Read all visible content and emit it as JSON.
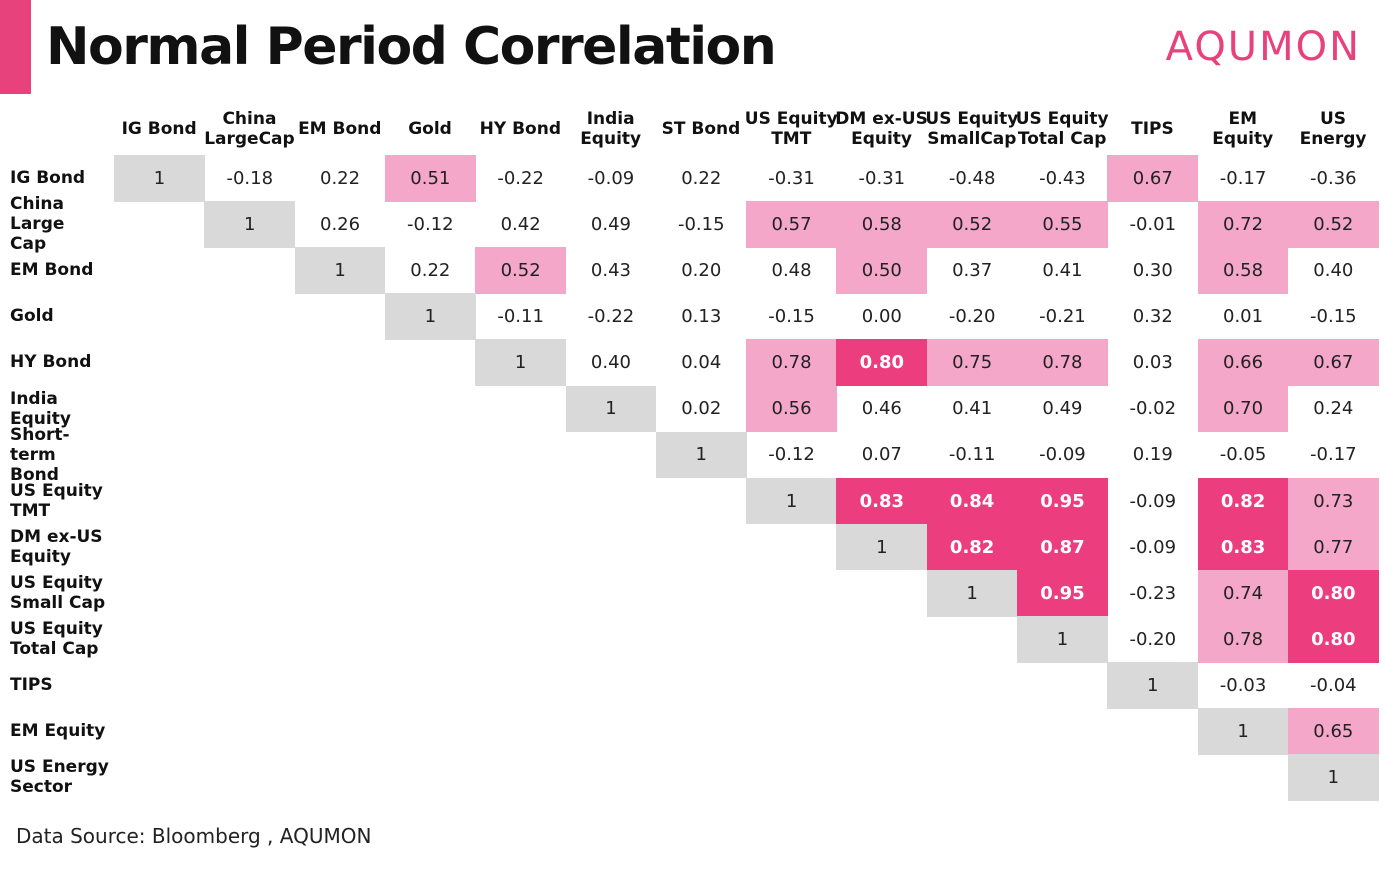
{
  "header": {
    "title": "Normal Period Correlation",
    "logo": "AQUMON"
  },
  "source": "Data Source: Bloomberg , AQUMON",
  "colors": {
    "diagonal": "#d9d9d9",
    "medium": "#f4a7c8",
    "high": "#ec3e7e",
    "accent": "#e8427c"
  },
  "legend_thresholds": {
    "medium_min": 0.5,
    "high_min": 0.8
  },
  "chart_data": {
    "type": "heatmap",
    "title": "Normal Period Correlation",
    "columns": [
      "IG Bond",
      "China\nLargeCap",
      "EM Bond",
      "Gold",
      "HY Bond",
      "India\nEquity",
      "ST Bond",
      "US Equity\nTMT",
      "DM ex-US\nEquity",
      "US Equity\nSmallCap",
      "US Equity\nTotal Cap",
      "TIPS",
      "EM\nEquity",
      "US\nEnergy"
    ],
    "rows": [
      "IG Bond",
      "China Large\nCap",
      "EM Bond",
      "Gold",
      "HY Bond",
      "India\nEquity",
      "Short-term\nBond",
      "US Equity\nTMT",
      "DM ex-US\nEquity",
      "US Equity\nSmall Cap",
      "US Equity\nTotal Cap",
      "TIPS",
      "EM Equity",
      "US Energy\nSector"
    ],
    "values": [
      [
        "1",
        "-0.18",
        "0.22",
        "0.51",
        "-0.22",
        "-0.09",
        "0.22",
        "-0.31",
        "-0.31",
        "-0.48",
        "-0.43",
        "0.67",
        "-0.17",
        "-0.36"
      ],
      [
        "",
        "1",
        "0.26",
        "-0.12",
        "0.42",
        "0.49",
        "-0.15",
        "0.57",
        "0.58",
        "0.52",
        "0.55",
        "-0.01",
        "0.72",
        "0.52"
      ],
      [
        "",
        "",
        "1",
        "0.22",
        "0.52",
        "0.43",
        "0.20",
        "0.48",
        "0.50",
        "0.37",
        "0.41",
        "0.30",
        "0.58",
        "0.40"
      ],
      [
        "",
        "",
        "",
        "1",
        "-0.11",
        "-0.22",
        "0.13",
        "-0.15",
        "0.00",
        "-0.20",
        "-0.21",
        "0.32",
        "0.01",
        "-0.15"
      ],
      [
        "",
        "",
        "",
        "",
        "1",
        "0.40",
        "0.04",
        "0.78",
        "0.80",
        "0.75",
        "0.78",
        "0.03",
        "0.66",
        "0.67"
      ],
      [
        "",
        "",
        "",
        "",
        "",
        "1",
        "0.02",
        "0.56",
        "0.46",
        "0.41",
        "0.49",
        "-0.02",
        "0.70",
        "0.24"
      ],
      [
        "",
        "",
        "",
        "",
        "",
        "",
        "1",
        "-0.12",
        "0.07",
        "-0.11",
        "-0.09",
        "0.19",
        "-0.05",
        "-0.17"
      ],
      [
        "",
        "",
        "",
        "",
        "",
        "",
        "",
        "1",
        "0.83",
        "0.84",
        "0.95",
        "-0.09",
        "0.82",
        "0.73"
      ],
      [
        "",
        "",
        "",
        "",
        "",
        "",
        "",
        "",
        "1",
        "0.82",
        "0.87",
        "-0.09",
        "0.83",
        "0.77"
      ],
      [
        "",
        "",
        "",
        "",
        "",
        "",
        "",
        "",
        "",
        "1",
        "0.95",
        "-0.23",
        "0.74",
        "0.80"
      ],
      [
        "",
        "",
        "",
        "",
        "",
        "",
        "",
        "",
        "",
        "",
        "1",
        "-0.20",
        "0.78",
        "0.80"
      ],
      [
        "",
        "",
        "",
        "",
        "",
        "",
        "",
        "",
        "",
        "",
        "",
        "1",
        "-0.03",
        "-0.04"
      ],
      [
        "",
        "",
        "",
        "",
        "",
        "",
        "",
        "",
        "",
        "",
        "",
        "",
        "1",
        "0.65"
      ],
      [
        "",
        "",
        "",
        "",
        "",
        "",
        "",
        "",
        "",
        "",
        "",
        "",
        "",
        "1"
      ]
    ]
  }
}
